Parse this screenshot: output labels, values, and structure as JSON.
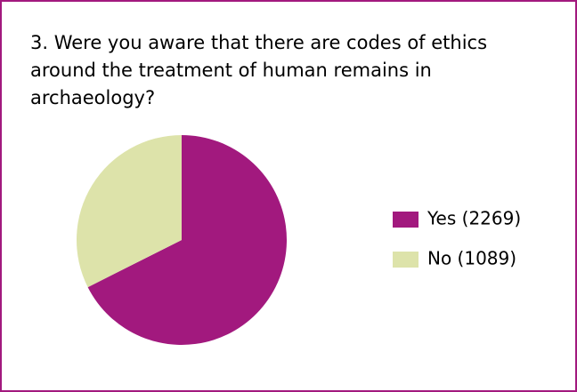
{
  "chart_data": {
    "type": "pie",
    "title_lines": [
      "3. Were you aware that there are codes of ethics",
      "around the treatment of human remains in",
      "archaeology?"
    ],
    "categories": [
      "Yes (2269)",
      "No (1089)"
    ],
    "values": [
      2269,
      1089
    ],
    "colors": [
      "#a2197e",
      "#dde3aa"
    ],
    "legend": "right"
  }
}
